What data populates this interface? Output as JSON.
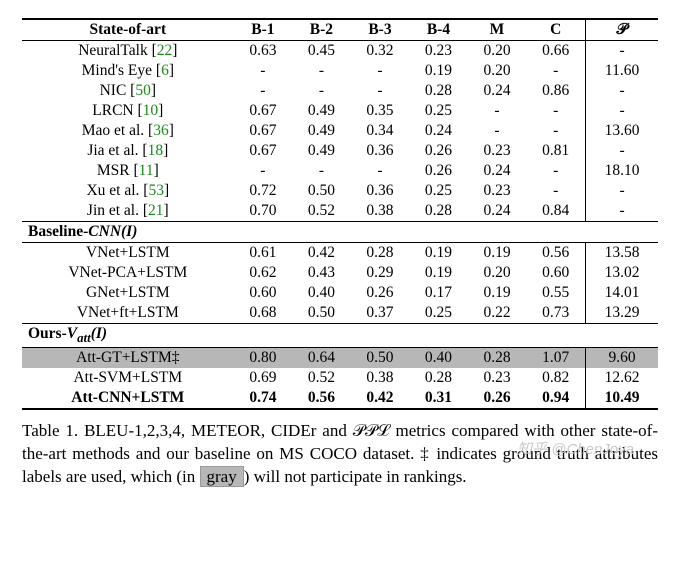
{
  "columns": [
    "State-of-art",
    "B-1",
    "B-2",
    "B-3",
    "B-4",
    "M",
    "C",
    "P"
  ],
  "header_script_last": "𝒫",
  "sections": [
    {
      "label": "State-of-art",
      "rows": [
        {
          "method": "NeuralTalk",
          "cite": "22",
          "vals": [
            "0.63",
            "0.45",
            "0.32",
            "0.23",
            "0.20",
            "0.66",
            "-"
          ]
        },
        {
          "method": "Mind's Eye",
          "cite": "6",
          "vals": [
            "-",
            "-",
            "-",
            "0.19",
            "0.20",
            "-",
            "11.60"
          ]
        },
        {
          "method": "NIC",
          "cite": "50",
          "vals": [
            "-",
            "-",
            "-",
            "0.28",
            "0.24",
            "0.86",
            "-"
          ]
        },
        {
          "method": "LRCN",
          "cite": "10",
          "vals": [
            "0.67",
            "0.49",
            "0.35",
            "0.25",
            "-",
            "-",
            "-"
          ]
        },
        {
          "method": "Mao et al.",
          "cite": "36",
          "vals": [
            "0.67",
            "0.49",
            "0.34",
            "0.24",
            "-",
            "-",
            "13.60"
          ]
        },
        {
          "method": "Jia et al.",
          "cite": "18",
          "vals": [
            "0.67",
            "0.49",
            "0.36",
            "0.26",
            "0.23",
            "0.81",
            "-"
          ]
        },
        {
          "method": "MSR",
          "cite": "11",
          "vals": [
            "-",
            "-",
            "-",
            "0.26",
            "0.24",
            "-",
            "18.10"
          ]
        },
        {
          "method": "Xu et al.",
          "cite": "53",
          "vals": [
            "0.72",
            "0.50",
            "0.36",
            "0.25",
            "0.23",
            "-",
            "-"
          ]
        },
        {
          "method": "Jin et al.",
          "cite": "21",
          "vals": [
            "0.70",
            "0.52",
            "0.38",
            "0.28",
            "0.24",
            "0.84",
            "-"
          ]
        }
      ]
    },
    {
      "label_html": "Baseline-<i>CNN(I)</i>",
      "rows": [
        {
          "method": "VNet+LSTM",
          "vals": [
            "0.61",
            "0.42",
            "0.28",
            "0.19",
            "0.19",
            "0.56",
            "13.58"
          ]
        },
        {
          "method": "VNet-PCA+LSTM",
          "vals": [
            "0.62",
            "0.43",
            "0.29",
            "0.19",
            "0.20",
            "0.60",
            "13.02"
          ]
        },
        {
          "method": "GNet+LSTM",
          "vals": [
            "0.60",
            "0.40",
            "0.26",
            "0.17",
            "0.19",
            "0.55",
            "14.01"
          ]
        },
        {
          "method": "VNet+ft+LSTM",
          "vals": [
            "0.68",
            "0.50",
            "0.37",
            "0.25",
            "0.22",
            "0.73",
            "13.29"
          ]
        }
      ]
    },
    {
      "label_html": "Ours-<i>V<sub>att</sub>(I)</i>",
      "rows": [
        {
          "method": "Att-GT+LSTM‡",
          "hl": true,
          "vals": [
            "0.80",
            "0.64",
            "0.50",
            "0.40",
            "0.28",
            "1.07",
            "9.60"
          ]
        },
        {
          "method": "Att-SVM+LSTM",
          "vals": [
            "0.69",
            "0.52",
            "0.38",
            "0.28",
            "0.23",
            "0.82",
            "12.62"
          ]
        },
        {
          "method": "Att-CNN+LSTM",
          "bold": true,
          "vals": [
            "0.74",
            "0.56",
            "0.42",
            "0.31",
            "0.26",
            "0.94",
            "10.49"
          ]
        }
      ]
    }
  ],
  "caption_prefix": "Table 1. BLEU-1,2,3,4, METEOR, CIDEr and ",
  "caption_script": "𝒫𝒫ℒ",
  "caption_suffix_1": " metrics compared with other state-of-the-art methods and our baseline on MS COCO dataset. ‡ indicates ground truth attributes labels are used, which (in ",
  "caption_gray": "gray",
  "caption_suffix_2": ") will not participate in rankings.",
  "watermark": "知乎 @ChenJoya"
}
